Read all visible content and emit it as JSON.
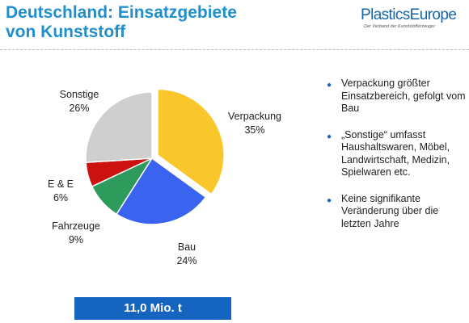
{
  "header": {
    "title_line1": "Deutschland: Einsatzgebiete",
    "title_line2": "von Kunststoff"
  },
  "logo": {
    "name": "PlasticsEurope",
    "tagline": "Der Verband der Kunststofferzeuger"
  },
  "chart_data": {
    "type": "pie",
    "categories": [
      "Verpackung",
      "Bau",
      "Fahrzeuge",
      "E & E",
      "Sonstige"
    ],
    "values": [
      35,
      24,
      9,
      6,
      26
    ],
    "value_labels": [
      "35%",
      "24%",
      "9%",
      "6%",
      "26%"
    ],
    "colors": [
      "#f9c62c",
      "#3a63f0",
      "#2e9a5c",
      "#cc1111",
      "#cfcfcf"
    ],
    "exploded": "Verpackung",
    "legend": "none",
    "data_labels": "outside"
  },
  "bullets": [
    "Verpackung größter Einsatzbereich, gefolgt vom Bau",
    "„Sonstige“ umfasst Haushaltswaren, Möbel, Landwirtschaft, Medizin, Spielwaren etc.",
    "Keine signifikante Veränderung über die letzten Jahre"
  ],
  "bullet_icon": "bullet-dot-icon",
  "total_box": {
    "label": "11,0 Mio. t"
  }
}
